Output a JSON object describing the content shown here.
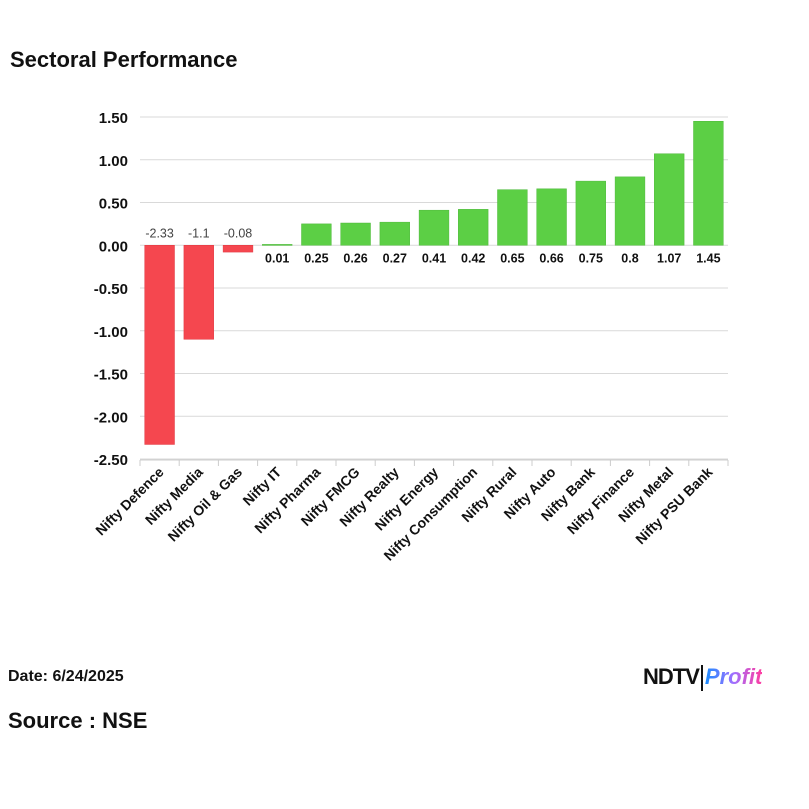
{
  "title": "Sectoral Performance",
  "footer": {
    "date": "Date: 6/24/2025",
    "source": "Source : NSE",
    "logo_ndtv": "NDTV",
    "logo_profit": "Profit"
  },
  "colors": {
    "positive": "#5ccf45",
    "negative": "#f5474f"
  },
  "chart_data": {
    "type": "bar",
    "title": "Sectoral Performance",
    "categories": [
      "Nifty Defence",
      "Nifty Media",
      "Nifty Oil & Gas",
      "Nifty IT",
      "Nifty Pharma",
      "Nifty FMCG",
      "Nifty Realty",
      "Nifty Energy",
      "Nifty Consumption",
      "Nifty Rural",
      "Nifty Auto",
      "Nifty Bank",
      "Nifty Finance",
      "Nifty Metal",
      "Nifty PSU Bank"
    ],
    "values": [
      -2.33,
      -1.1,
      -0.08,
      0.01,
      0.25,
      0.26,
      0.27,
      0.41,
      0.42,
      0.65,
      0.66,
      0.75,
      0.8,
      1.07,
      1.45
    ],
    "data_labels": [
      "-2.33",
      "-1.1",
      "-0.08",
      "0.01",
      "0.25",
      "0.26",
      "0.27",
      "0.41",
      "0.42",
      "0.65",
      "0.66",
      "0.75",
      "0.8",
      "1.07",
      "1.45"
    ],
    "yticks": [
      "1.50",
      "1.00",
      "0.50",
      "0.00",
      "-0.50",
      "-1.00",
      "-1.50",
      "-2.00",
      "-2.50"
    ],
    "ylim": [
      -2.5,
      1.5
    ],
    "grid": true,
    "xlabel": "",
    "ylabel": ""
  }
}
